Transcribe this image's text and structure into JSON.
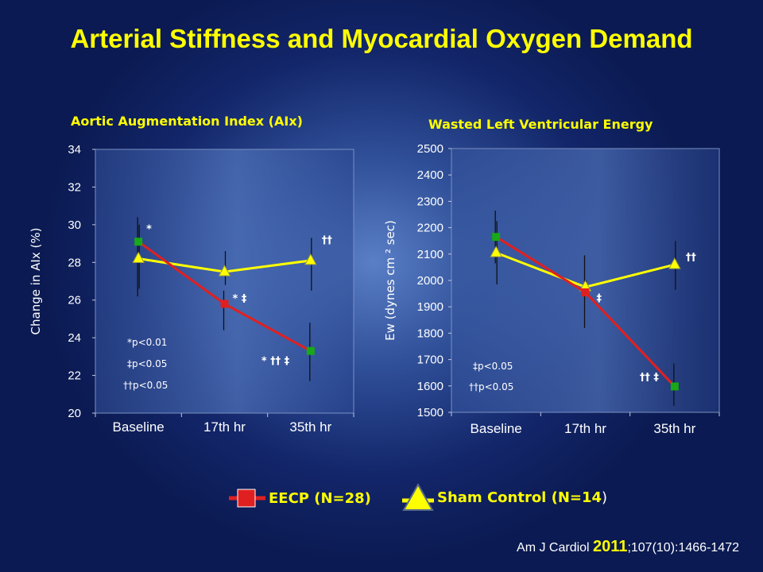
{
  "slide_title": "Arterial Stiffness and Myocardial Oxygen Demand",
  "legend": {
    "eecp": {
      "label": "EECP (N=28)",
      "color": "#e02020"
    },
    "sham": {
      "label": "Sham Control (N=14",
      "close_paren": ")",
      "color": "#ffff00"
    }
  },
  "citation": {
    "journal": "Am J Cardiol ",
    "year": "2011",
    "rest": ";107(10):1466-1472"
  },
  "chart_data": [
    {
      "type": "line",
      "title": "Aortic Augmentation Index (AIx)",
      "ylabel": "Change in  AIx  (%)",
      "categories": [
        "Baseline",
        "17th hr",
        "35th hr"
      ],
      "ylim": [
        20,
        34
      ],
      "yticks": [
        20,
        22,
        24,
        26,
        28,
        30,
        32,
        34
      ],
      "series": [
        {
          "key": "eecp",
          "values": [
            29.1,
            25.8,
            23.3
          ],
          "err_low": [
            26.2,
            24.4,
            21.7
          ],
          "err_high": [
            30.4,
            26.5,
            24.8
          ]
        },
        {
          "key": "sham",
          "values": [
            28.2,
            27.5,
            28.1
          ],
          "err_low": [
            26.6,
            26.8,
            26.5
          ],
          "err_high": [
            30.0,
            28.6,
            29.3
          ]
        }
      ],
      "annotations": [
        {
          "text": "*",
          "x": 0,
          "y": 29.6
        },
        {
          "text": "* ‡",
          "x": 1,
          "y": 25.9
        },
        {
          "text": "* †† ‡",
          "x": 2,
          "y": 22.6
        },
        {
          "text": "††",
          "x": 2,
          "y": 29.0
        }
      ],
      "footnotes": [
        "*p<0.01",
        "‡p<0.05",
        "††p<0.05"
      ]
    },
    {
      "type": "line",
      "title": "Wasted Left Ventricular Energy",
      "ylabel": "Ew (dynes cm ² sec)",
      "categories": [
        "Baseline",
        "17th hr",
        "35th hr"
      ],
      "ylim": [
        1500,
        2500
      ],
      "yticks": [
        1500,
        1600,
        1700,
        1800,
        1900,
        2000,
        2100,
        2200,
        2300,
        2400,
        2500
      ],
      "series": [
        {
          "key": "eecp",
          "values": [
            2165,
            1955,
            1598
          ],
          "err_low": [
            2065,
            1820,
            1525
          ],
          "err_high": [
            2265,
            2095,
            1685
          ]
        },
        {
          "key": "sham",
          "values": [
            2105,
            1975,
            2060
          ],
          "err_low": [
            1985,
            1950,
            1965
          ],
          "err_high": [
            2225,
            2000,
            2150
          ]
        }
      ],
      "annotations": [
        {
          "text": "‡",
          "x": 1,
          "y": 1920
        },
        {
          "text": "†† ‡",
          "x": 2,
          "y": 1620
        },
        {
          "text": "††",
          "x": 2,
          "y": 2075
        }
      ],
      "footnotes": [
        "‡p<0.05",
        "††p<0.05"
      ]
    }
  ]
}
